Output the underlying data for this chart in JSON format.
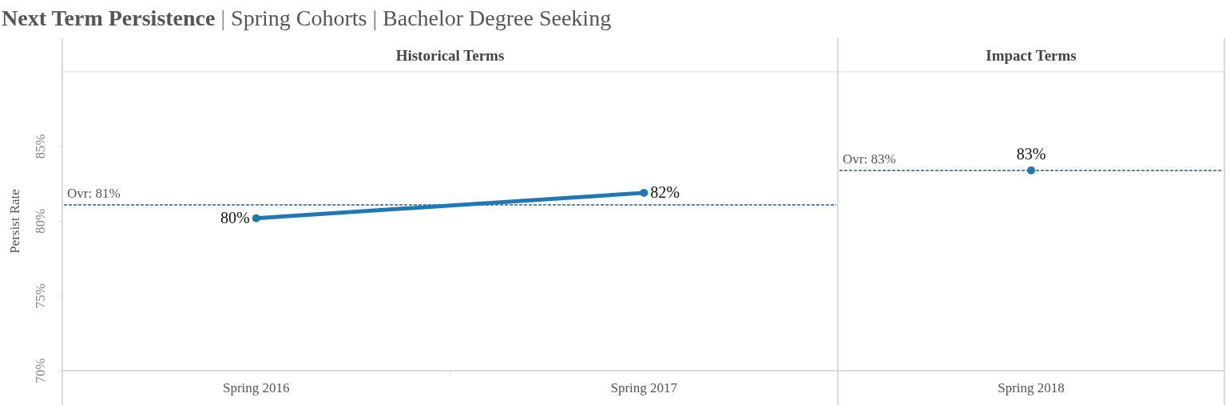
{
  "chart_data": [
    {
      "type": "line",
      "title": "Next Term Persistence | Spring Cohorts | Bachelor Degree Seeking",
      "subtitle": "Historical Terms",
      "ylabel": "Persist Rate",
      "categories": [
        "Spring 2016",
        "Spring 2017"
      ],
      "series": [
        {
          "color": "#1f77b4",
          "values": [
            80.2,
            81.9
          ],
          "value_labels": [
            "80%",
            "82%"
          ]
        }
      ],
      "ylim": [
        70,
        90
      ],
      "yticks": [
        {
          "value": 70,
          "label": "70%"
        },
        {
          "value": 75,
          "label": "75%"
        },
        {
          "value": 80,
          "label": "80%"
        },
        {
          "value": 85,
          "label": "85%"
        }
      ],
      "ref_lines": [
        {
          "axis": "y",
          "value": 81.1,
          "label": "Ovr: 81%",
          "color": "#2e5f8f",
          "line_style": "dashed"
        }
      ],
      "marker": "circle",
      "grid": false
    },
    {
      "type": "scatter",
      "subtitle": "Impact Terms",
      "categories": [
        "Spring 2018"
      ],
      "series": [
        {
          "color": "#1f77b4",
          "values": [
            83.4
          ],
          "value_labels": [
            "83%"
          ]
        }
      ],
      "ylim": [
        70,
        90
      ],
      "tick_labels": "x",
      "ref_lines": [
        {
          "axis": "y",
          "value": 83.4,
          "label": "Ovr: 83%",
          "color": "#2e5f8f",
          "line_style": "dashed"
        }
      ],
      "marker": "circle",
      "grid": false
    }
  ]
}
